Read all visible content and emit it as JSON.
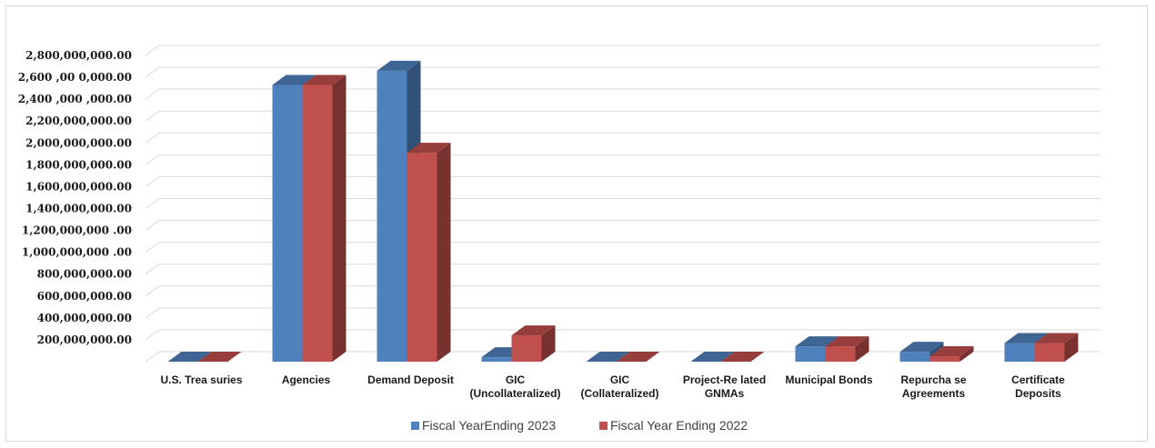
{
  "chart_data": {
    "type": "bar",
    "categories": [
      "U.S. Trea suries",
      "Agencies",
      "Demand Deposit",
      "GIC (Uncollateralized)",
      "GIC (Collateralized)",
      "Project-Re lated GNMAs",
      "Municipal Bonds",
      "Repurcha se Agreements",
      "Certificate Deposits"
    ],
    "category_lines": [
      [
        "U.S. Trea suries"
      ],
      [
        "Agencies"
      ],
      [
        "Demand Deposit"
      ],
      [
        "GIC",
        "(Uncollateralized)"
      ],
      [
        "GIC",
        "(Collateralized)"
      ],
      [
        "Project-Re lated",
        "GNMAs"
      ],
      [
        "Municipal Bonds"
      ],
      [
        "Repurcha se",
        "Agreements"
      ],
      [
        "Certificate",
        "Deposits"
      ]
    ],
    "series": [
      {
        "name": "Fiscal YearEnding 2023",
        "color": "#4f81bd",
        "values": [
          0,
          2530000000,
          2660000000,
          40000000,
          0,
          0,
          140000000,
          90000000,
          170000000
        ]
      },
      {
        "name": "Fiscal Year Ending 2022",
        "color": "#c0504d",
        "values": [
          0,
          2530000000,
          1910000000,
          240000000,
          0,
          0,
          140000000,
          50000000,
          170000000
        ]
      }
    ],
    "yticks": [
      200000000,
      400000000,
      600000000,
      800000000,
      1000000000,
      1200000000,
      1400000000,
      1600000000,
      1800000000,
      2000000000,
      2200000000,
      2400000000,
      2600000000,
      2800000000
    ],
    "ytick_labels": [
      "200,000,000.00",
      "400,000,000.00",
      "600,000,000.00",
      "800,000,000.00",
      "1,000,000,000 .00",
      "1,200,000,000 .00",
      "1,400,000,000.00",
      "1,600,000,000.00",
      "1,800,000,000.00",
      "2,000,000,000.00",
      "2,200,000,000.00",
      "2,400 ,000 ,000.00",
      "2,600 ,00 0,000.00",
      "2,800,000,000.00"
    ],
    "ylim": [
      0,
      2800000000
    ],
    "grid": true,
    "legend_position": "bottom",
    "style": "3d-clustered-column"
  }
}
